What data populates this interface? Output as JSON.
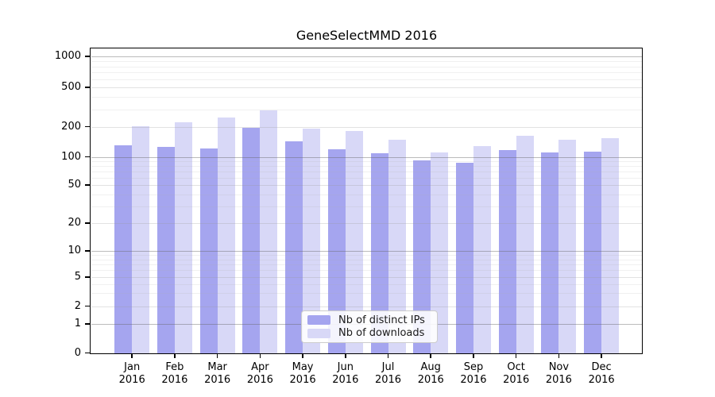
{
  "chart_data": {
    "type": "bar",
    "title": "GeneSelectMMD 2016",
    "categories": [
      "Jan 2016",
      "Feb 2016",
      "Mar 2016",
      "Apr 2016",
      "May 2016",
      "Jun 2016",
      "Jul 2016",
      "Aug 2016",
      "Sep 2016",
      "Oct 2016",
      "Nov 2016",
      "Dec 2016"
    ],
    "series": [
      {
        "name": "Nb of distinct IPs",
        "values": [
          130,
          126,
          122,
          195,
          144,
          120,
          109,
          92,
          86,
          116,
          110,
          113
        ]
      },
      {
        "name": "Nb of downloads",
        "values": [
          203,
          221,
          246,
          290,
          192,
          181,
          149,
          110,
          128,
          161,
          149,
          154
        ]
      }
    ],
    "xlabel": "",
    "ylabel": "",
    "yscale": "log-with-zero",
    "yticks": [
      1000,
      500,
      200,
      100,
      50,
      20,
      10,
      5,
      2,
      1,
      0
    ],
    "ylim": [
      0,
      1300
    ],
    "grid": true,
    "minor_grid": true,
    "legend_position": "inside-bottom-center"
  },
  "legend": {
    "items": [
      {
        "label": "Nb of distinct IPs",
        "series_index": 0
      },
      {
        "label": "Nb of downloads",
        "series_index": 1
      }
    ]
  },
  "colors": {
    "background": "#ffffff",
    "bar_distinct_ips": "#a5a5ef",
    "bar_downloads": "#d8d8f7",
    "spine": "#000000",
    "grid_power10": "rgba(105,105,105,0.45)",
    "grid_major": "rgba(150,150,150,0.28)",
    "grid_minor": "rgba(170,170,170,0.18)",
    "legend_border": "#cccccc",
    "text": "#000000"
  }
}
